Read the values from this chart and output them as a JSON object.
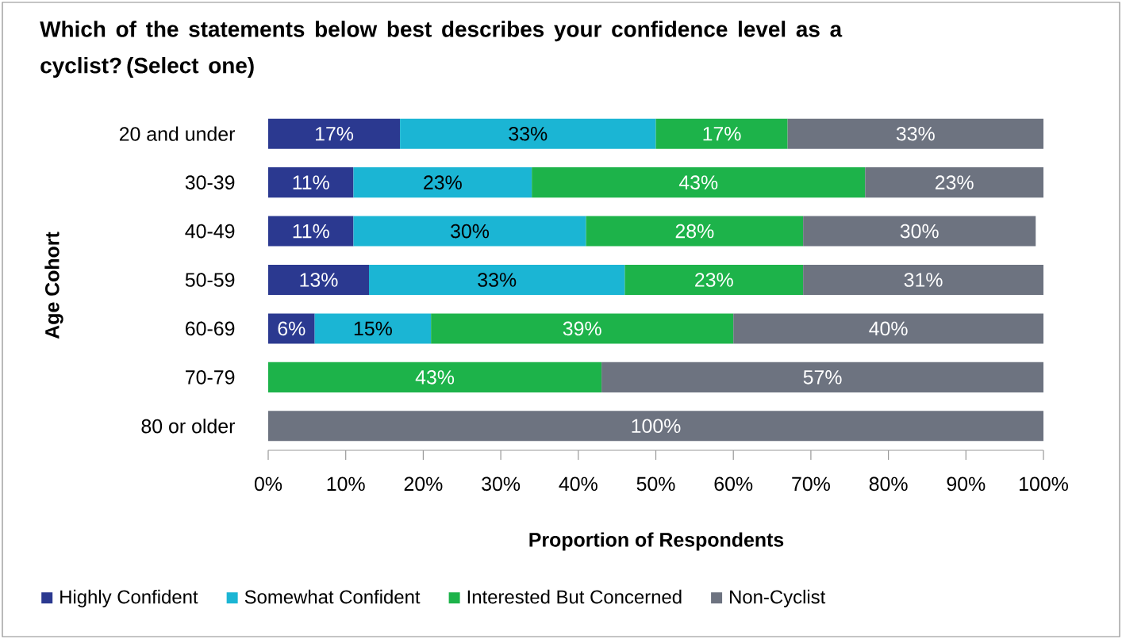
{
  "chart_data": {
    "type": "bar",
    "orientation": "horizontal",
    "stacked": true,
    "title": "Which of the statements below best describes your confidence level as a cyclist? (Select one)",
    "xlabel": "Proportion of Respondents",
    "ylabel": "Age Cohort",
    "categories": [
      "20 and under",
      "30-39",
      "40-49",
      "50-59",
      "60-69",
      "70-79",
      "80 or older"
    ],
    "series": [
      {
        "name": "Highly Confident",
        "color": "#2b3990",
        "values": [
          17,
          11,
          11,
          13,
          6,
          null,
          null
        ],
        "value_labels": [
          "17%",
          "11%",
          "11%",
          "13%",
          "6%",
          null,
          null
        ]
      },
      {
        "name": "Somewhat Confident",
        "color": "#1bb5d4",
        "values": [
          33,
          23,
          30,
          33,
          15,
          null,
          null
        ],
        "value_labels": [
          "33%",
          "23%",
          "30%",
          "33%",
          "15%",
          null,
          null
        ]
      },
      {
        "name": "Interested But Concerned",
        "color": "#1db34a",
        "values": [
          17,
          43,
          28,
          23,
          39,
          43,
          null
        ],
        "value_labels": [
          "17%",
          "43%",
          "28%",
          "23%",
          "39%",
          "43%",
          null
        ]
      },
      {
        "name": "Non-Cyclist",
        "color": "#6d7380",
        "values": [
          33,
          23,
          30,
          31,
          40,
          57,
          100
        ],
        "value_labels": [
          "33%",
          "23%",
          "30%",
          "31%",
          "40%",
          "57%",
          "100%"
        ]
      }
    ],
    "xlim": [
      0,
      100
    ],
    "xticks": [
      {
        "value": 0,
        "label": "0%"
      },
      {
        "value": 10,
        "label": "10%"
      },
      {
        "value": 20,
        "label": "20%"
      },
      {
        "value": 30,
        "label": "30%"
      },
      {
        "value": 40,
        "label": "40%"
      },
      {
        "value": 50,
        "label": "50%"
      },
      {
        "value": 60,
        "label": "60%"
      },
      {
        "value": 70,
        "label": "70%"
      },
      {
        "value": 80,
        "label": "80%"
      },
      {
        "value": 90,
        "label": "90%"
      },
      {
        "value": 100,
        "label": "100%"
      }
    ],
    "legend": "bottom"
  }
}
